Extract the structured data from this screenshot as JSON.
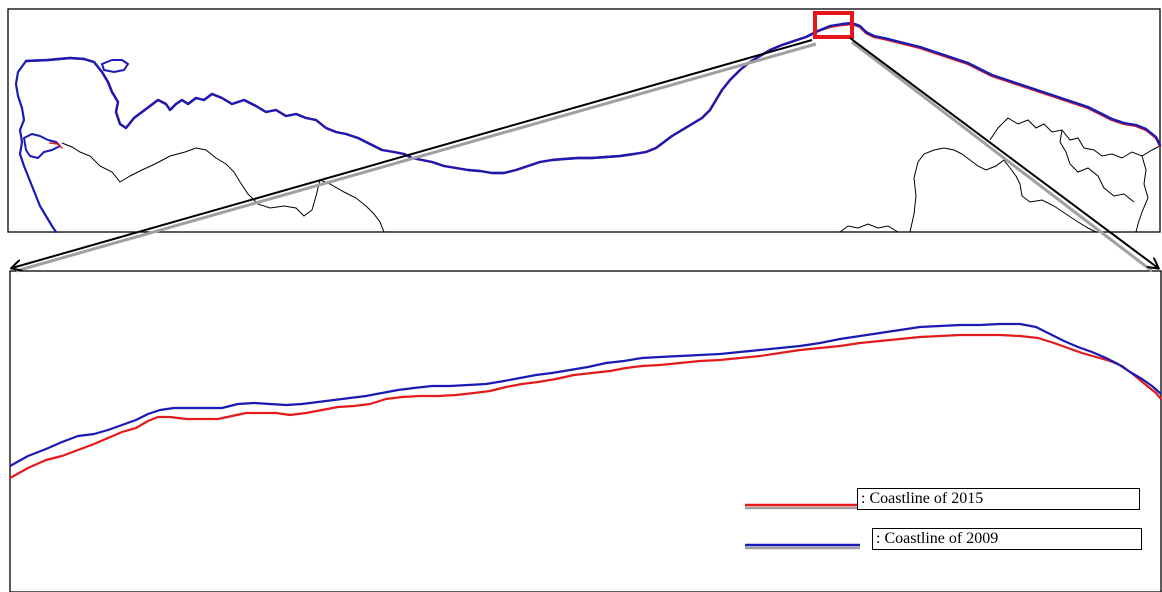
{
  "figure": {
    "kind": "coastline-change map with zoomed inset"
  },
  "colors": {
    "coastline_2015": "#e41a1c",
    "coastline_2009": "#1a1ab4",
    "border_lines": "#000000",
    "highlight_box": "#e8141c",
    "arrow_shadow": "#a0a0a0"
  },
  "legend": {
    "items": [
      {
        "label": ": Coastline of 2015",
        "color": "#e41a1c"
      },
      {
        "label": ": Coastline of 2009",
        "color": "#1a1ab4"
      }
    ]
  }
}
